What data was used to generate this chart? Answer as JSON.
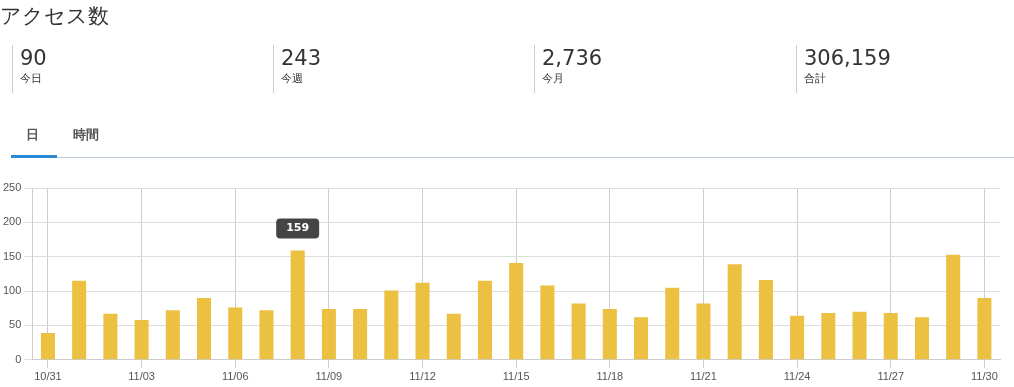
{
  "chart_data": [
    {
      "type": "other",
      "title": "アクセス数",
      "annotations": [
        "90",
        "今日",
        "243",
        "今週",
        "2,736",
        "今月",
        "306,159",
        "合計",
        "日",
        "時間"
      ]
    },
    {
      "type": "bar",
      "categories": [
        "10/31",
        null,
        null,
        "11/03",
        null,
        null,
        "11/06",
        null,
        null,
        "11/09",
        null,
        null,
        "11/12",
        null,
        null,
        "11/15",
        null,
        null,
        "11/18",
        null,
        null,
        "11/21",
        null,
        null,
        "11/24",
        null,
        null,
        "11/27",
        null,
        null,
        "11/30"
      ],
      "values": [
        39,
        115,
        67,
        58,
        72,
        90,
        76,
        72,
        159,
        74,
        74,
        101,
        112,
        67,
        115,
        141,
        108,
        82,
        74,
        62,
        105,
        82,
        139,
        116,
        64,
        68,
        70,
        68,
        62,
        153,
        90
      ],
      "value_labels": [
        null,
        null,
        null,
        null,
        null,
        null,
        null,
        null,
        "159",
        null,
        null,
        null,
        null,
        null,
        null,
        null,
        null,
        null,
        null,
        null,
        null,
        null,
        null,
        null,
        null,
        null,
        null,
        null,
        null,
        null,
        null
      ],
      "color": "#ecc040",
      "ylim": [
        0,
        250
      ],
      "yticks": [
        0,
        50,
        100,
        150,
        200,
        250
      ],
      "grid": true
    }
  ]
}
